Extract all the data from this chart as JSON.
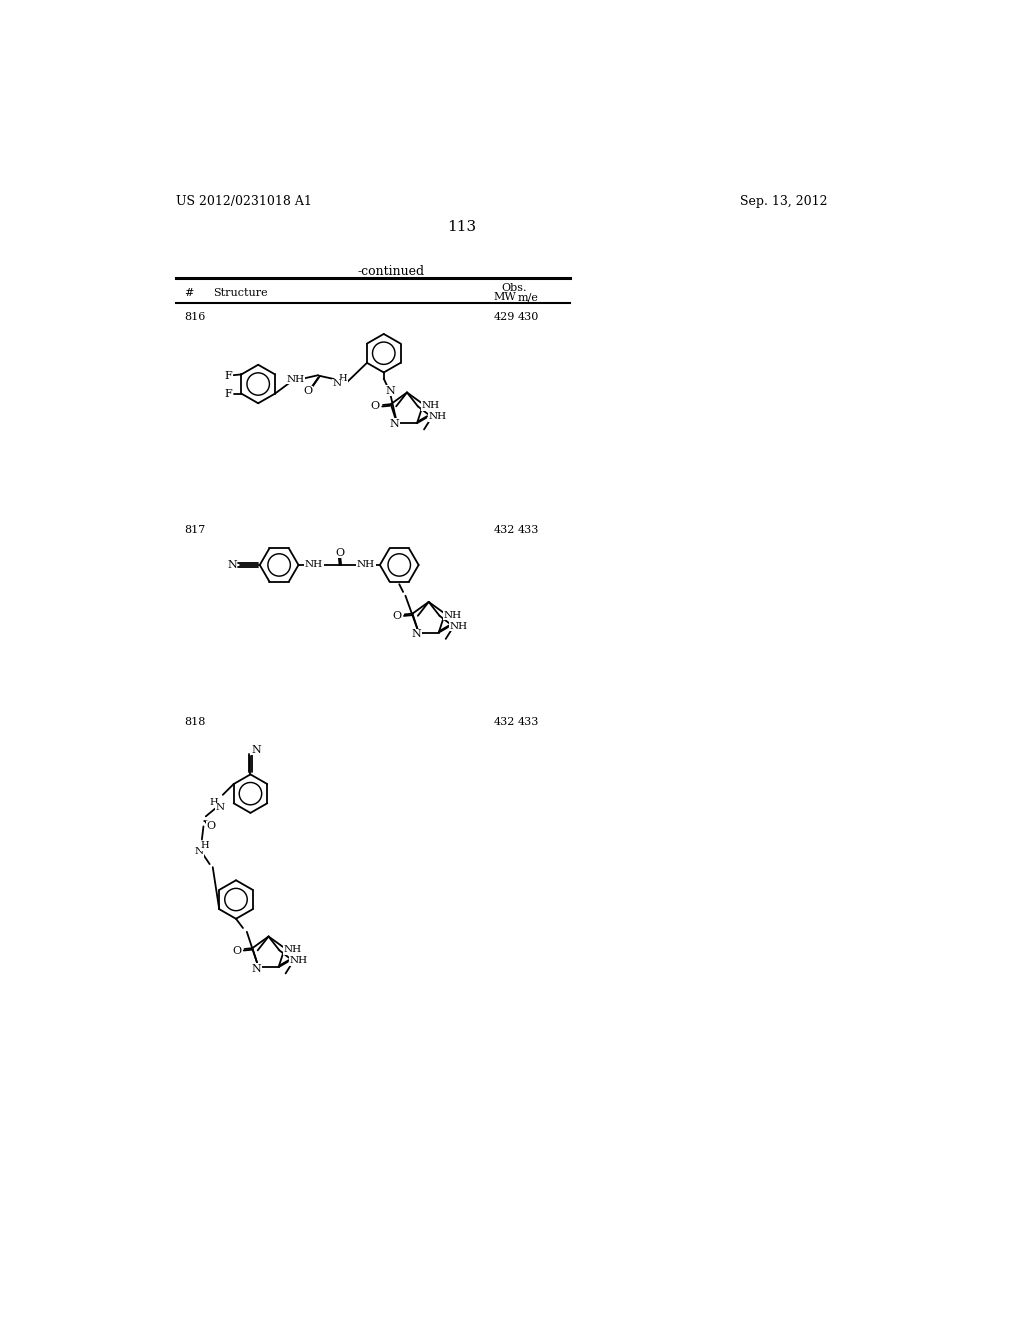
{
  "page_number": "113",
  "patent_number": "US 2012/0231018 A1",
  "patent_date": "Sep. 13, 2012",
  "continued_label": "-continued",
  "entries": [
    {
      "id": "816",
      "mw": "429",
      "obs": "430"
    },
    {
      "id": "817",
      "mw": "432",
      "obs": "433"
    },
    {
      "id": "818",
      "mw": "432",
      "obs": "433"
    }
  ],
  "bg_color": "#ffffff"
}
